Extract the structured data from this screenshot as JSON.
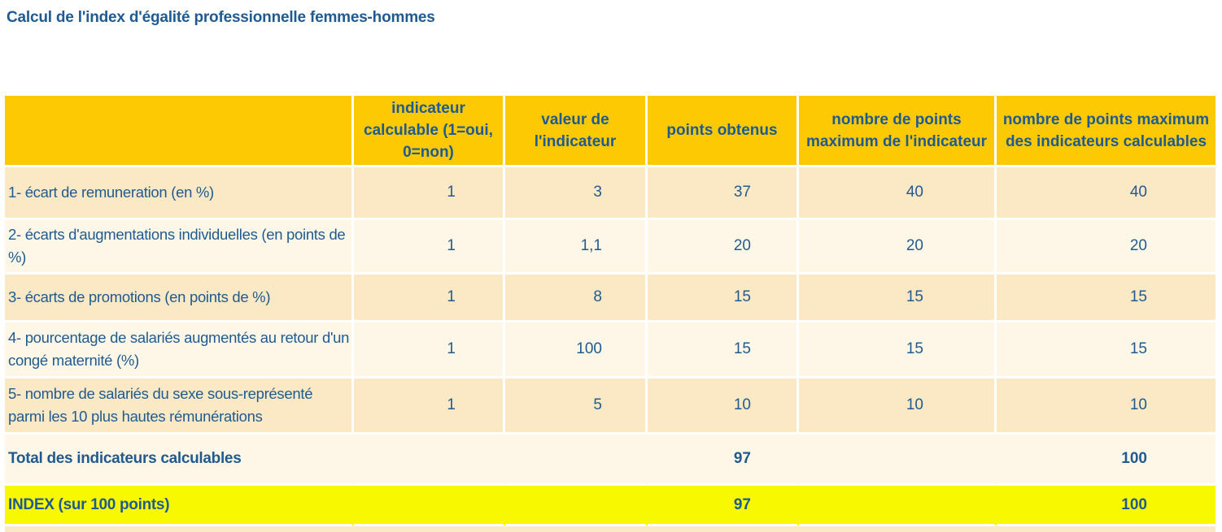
{
  "title": "Calcul de l'index d'égalité professionnelle femmes-hommes",
  "colors": {
    "header_gold": "#FCC902",
    "row_tan": "#FBE8C5",
    "row_cream": "#FEF7E7",
    "index_yellow": "#F8F800",
    "text_blue": "#1F5B90"
  },
  "table": {
    "header": {
      "col_label": "",
      "col_calculable": "indicateur\ncalculable (1=oui,\n0=non)",
      "col_valeur": "valeur de\nl'indicateur",
      "col_points": "points obtenus",
      "col_max_indicateur": "nombre de points\nmaximum de l'indicateur",
      "col_max_calculables": "nombre de points maximum\ndes indicateurs calculables"
    },
    "rows": [
      {
        "label": "1- écart de remuneration (en %)",
        "values": [
          "1",
          "3",
          "37",
          "40",
          "40"
        ]
      },
      {
        "label": "2- écarts d'augmentations individuelles (en points de %)",
        "values": [
          "1",
          "1,1",
          "20",
          "20",
          "20"
        ]
      },
      {
        "label": "3- écarts de promotions (en points de %)",
        "values": [
          "1",
          "8",
          "15",
          "15",
          "15"
        ]
      },
      {
        "label": "4- pourcentage de salariés augmentés au retour d'un congé maternité (%)",
        "values": [
          "1",
          "100",
          "15",
          "15",
          "15"
        ]
      },
      {
        "label": "5- nombre de salariés du sexe sous-représenté parmi les 10 plus hautes rémunérations",
        "values": [
          "1",
          "5",
          "10",
          "10",
          "10"
        ]
      }
    ],
    "total_row": {
      "label": "Total des indicateurs calculables",
      "points": "97",
      "max_calculables": "100"
    },
    "index_row": {
      "label": "INDEX (sur 100 points)",
      "points": "97",
      "max_calculables": "100"
    }
  }
}
